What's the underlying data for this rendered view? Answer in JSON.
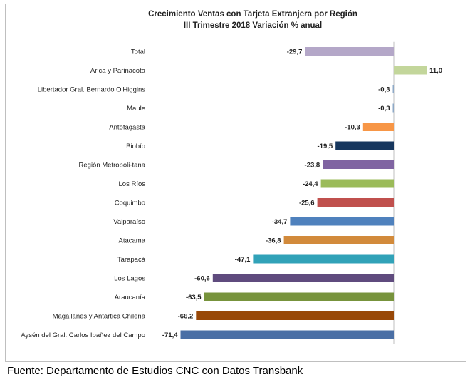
{
  "chart_data": {
    "type": "bar",
    "orientation": "horizontal",
    "title": "Crecimiento Ventas con Tarjeta Extranjera por Región",
    "subtitle": "III Trimestre 2018 Variación % anual",
    "categories": [
      "Total",
      "Arica y Parinacota",
      "Libertador Gral. Bernardo O'Higgins",
      "Maule",
      "Antofagasta",
      "Biobío",
      "Región Metropoli-tana",
      "Los Ríos",
      "Coquimbo",
      "Valparaíso",
      "Atacama",
      "Tarapacá",
      "Los Lagos",
      "Araucanía",
      "Magallanes y Antártica Chilena",
      "Aysén del Gral. Carlos Ibañez del Campo"
    ],
    "values": [
      -29.7,
      11.0,
      -0.3,
      -0.3,
      -10.3,
      -19.5,
      -23.8,
      -24.4,
      -25.6,
      -34.7,
      -36.8,
      -47.1,
      -60.6,
      -63.5,
      -66.2,
      -71.4
    ],
    "value_labels": [
      "-29,7",
      "11,0",
      "-0,3",
      "-0,3",
      "-10,3",
      "-19,5",
      "-23,8",
      "-24,4",
      "-25,6",
      "-34,7",
      "-36,8",
      "-47,1",
      "-60,6",
      "-63,5",
      "-66,2",
      "-71,4"
    ],
    "colors": [
      "#b4a7c8",
      "#c3d69b",
      "#8ea9c7",
      "#8ea9c7",
      "#f79646",
      "#17375e",
      "#8064a2",
      "#9bbb59",
      "#c0504d",
      "#4f81bd",
      "#d28a3b",
      "#31a2b8",
      "#5f4b7e",
      "#77933c",
      "#984807",
      "#4a6fa5"
    ],
    "xlim": [
      -80,
      15
    ],
    "grid": false,
    "legend": "none"
  },
  "footer": {
    "source": "Fuente: Departamento de Estudios CNC con Datos Transbank"
  }
}
